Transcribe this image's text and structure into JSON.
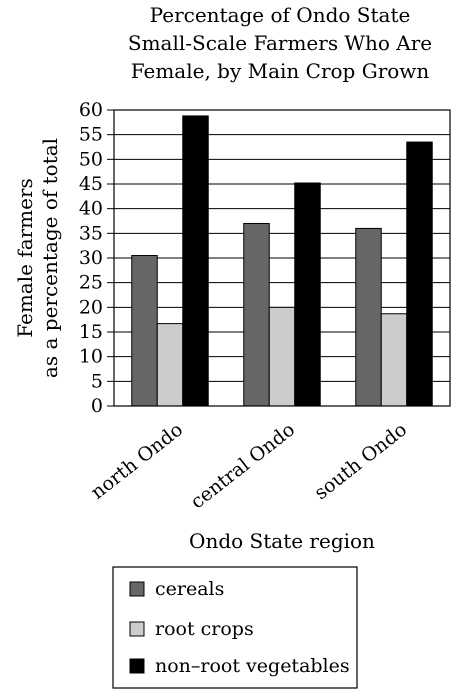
{
  "chart_data": {
    "type": "bar",
    "title": [
      "Percentage of Ondo State",
      "Small-Scale Farmers Who Are",
      "Female, by Main Crop Grown"
    ],
    "xlabel": "Ondo State region",
    "ylabel": [
      "Female farmers",
      "as a percentage of total"
    ],
    "categories": [
      "north Ondo",
      "central Ondo",
      "south Ondo"
    ],
    "ylim": [
      0,
      60
    ],
    "yticks": [
      0,
      5,
      10,
      15,
      20,
      25,
      30,
      35,
      40,
      45,
      50,
      55,
      60
    ],
    "grid": true,
    "legend_position": "bottom",
    "series": [
      {
        "name": "cereals",
        "values": [
          30.5,
          37,
          36
        ],
        "color": "#666666"
      },
      {
        "name": "root crops",
        "values": [
          16.7,
          20,
          18.7
        ],
        "color": "#cccccc"
      },
      {
        "name": "non–root vegetables",
        "values": [
          58.8,
          45.2,
          53.5
        ],
        "color": "#000000"
      }
    ]
  }
}
